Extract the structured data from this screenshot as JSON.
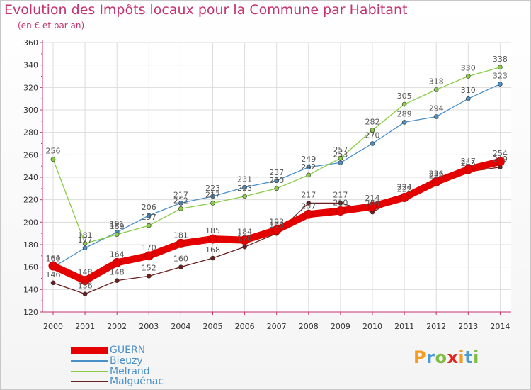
{
  "header": {
    "title": "Evolution des Impôts locaux pour la Commune par Habitant",
    "subtitle": "(en € et par an)"
  },
  "logo": {
    "letters": [
      "P",
      "r",
      "o",
      "x",
      "i",
      "t",
      "i"
    ],
    "colors": [
      "#f39c1e",
      "#4a9ad8",
      "#7cbf42",
      "#e2231a",
      "#f39c1e",
      "#4a9ad8",
      "#7cbf42"
    ]
  },
  "colors": {
    "title": "#c4336f",
    "axis": "#c4336f",
    "grid": "#dcdcdc",
    "label_text": "#555555"
  },
  "chart_data": {
    "type": "line",
    "title": "Evolution des Impôts locaux pour la Commune par Habitant",
    "subtitle": "(en € et par an)",
    "xlabel": "",
    "ylabel": "",
    "x": [
      "2000",
      "2001",
      "2002",
      "2003",
      "2004",
      "2005",
      "2006",
      "2007",
      "2008",
      "2009",
      "2010",
      "2011",
      "2012",
      "2013",
      "2014"
    ],
    "y_ticks": [
      "120",
      "140",
      "160",
      "180",
      "200",
      "220",
      "240",
      "260",
      "280",
      "300",
      "320",
      "340",
      "360"
    ],
    "ylim": [
      120,
      360
    ],
    "grid": true,
    "legend_position": "bottom-left",
    "series": [
      {
        "name": "GUERN",
        "color": "#e50000",
        "values": [
          161,
          148,
          164,
          170,
          181,
          185,
          184,
          193,
          207,
          210,
          214,
          222,
          236,
          247,
          254
        ],
        "labels": [
          "161",
          "148",
          "164",
          "170",
          "181",
          "185",
          "184",
          "193",
          "207",
          "210",
          "214",
          "222",
          "236",
          "247",
          "254"
        ]
      },
      {
        "name": "Bieuzy",
        "color": "#4a90c8",
        "values": [
          160,
          177,
          191,
          206,
          217,
          223,
          231,
          237,
          249,
          253,
          270,
          289,
          294,
          310,
          323
        ],
        "labels": [
          "160",
          "177",
          "191",
          "206",
          "217",
          "223",
          "231",
          "237",
          "249",
          "253",
          "270",
          "289",
          "294",
          "310",
          "323"
        ]
      },
      {
        "name": "Melrand",
        "color": "#88cc44",
        "values": [
          256,
          181,
          189,
          197,
          212,
          217,
          223,
          230,
          242,
          257,
          282,
          305,
          318,
          330,
          338
        ],
        "labels": [
          "256",
          "181",
          "189",
          "197",
          "212",
          "217",
          "223",
          "230",
          "242",
          "257",
          "282",
          "305",
          "318",
          "330",
          "338"
        ]
      },
      {
        "name": "Malguénac",
        "color": "#6b1e1e",
        "values": [
          146,
          136,
          148,
          152,
          160,
          168,
          178,
          190,
          217,
          217,
          209,
          224,
          234,
          245,
          249
        ],
        "labels": [
          "146",
          "136",
          "148",
          "152",
          "160",
          "168",
          "178",
          "190",
          "217",
          "217",
          "209",
          "224",
          "234",
          "245",
          "249"
        ]
      }
    ]
  }
}
